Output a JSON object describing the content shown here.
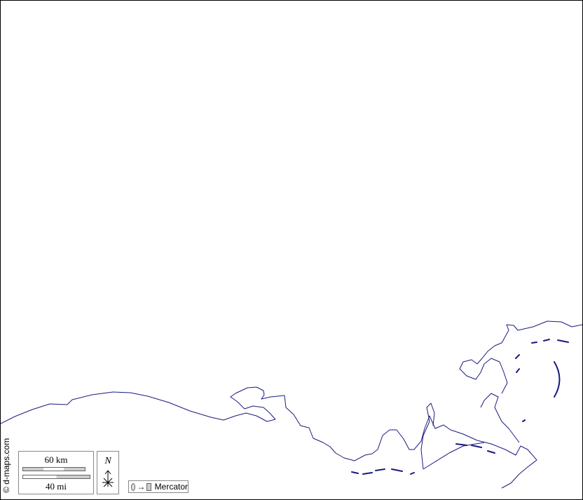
{
  "map": {
    "coastline_color": "#1a1a80",
    "credit": "© d-maps.com",
    "scale": {
      "km_label": "60 km",
      "mi_label": "40 mi"
    },
    "north_label": "N",
    "projection": {
      "label": "Mercator",
      "arrow": "→"
    }
  }
}
